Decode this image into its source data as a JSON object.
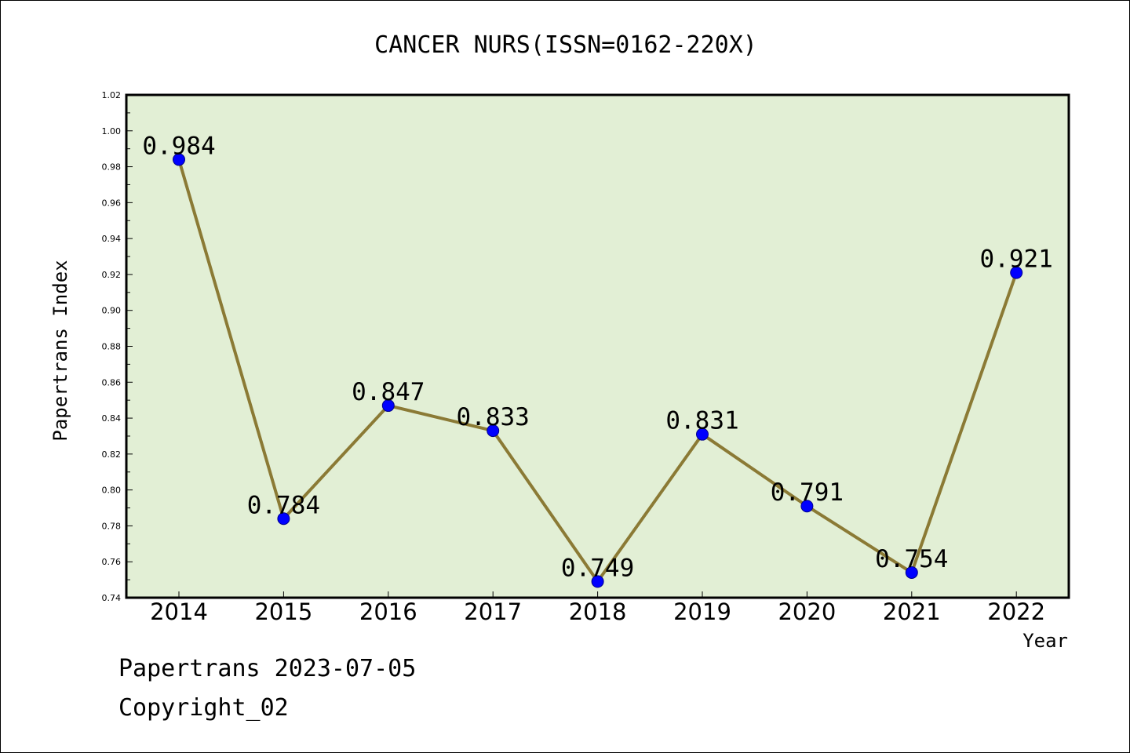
{
  "chart_data": {
    "type": "line",
    "title": "CANCER NURS(ISSN=0162-220X)",
    "xlabel": "Year",
    "ylabel": "Papertrans Index",
    "categories": [
      "2014",
      "2015",
      "2016",
      "2017",
      "2018",
      "2019",
      "2020",
      "2021",
      "2022"
    ],
    "values": [
      0.984,
      0.784,
      0.847,
      0.833,
      0.749,
      0.831,
      0.791,
      0.754,
      0.921
    ],
    "data_labels": [
      "0.984",
      "0.784",
      "0.847",
      "0.833",
      "0.749",
      "0.831",
      "0.791",
      "0.754",
      "0.921"
    ],
    "ylim": [
      0.74,
      1.02
    ],
    "yticks": [
      "0.74",
      "0.76",
      "0.78",
      "0.80",
      "0.82",
      "0.84",
      "0.86",
      "0.88",
      "0.90",
      "0.92",
      "0.94",
      "0.96",
      "0.98",
      "1.00",
      "1.02"
    ],
    "grid": false,
    "legend": "none",
    "colors": {
      "plot_background": "#e2efd5",
      "line": "#8b7a35",
      "marker": "#0000ff"
    }
  },
  "footer": {
    "source": "Papertrans 2023-07-05",
    "copyright": "Copyright_02"
  }
}
